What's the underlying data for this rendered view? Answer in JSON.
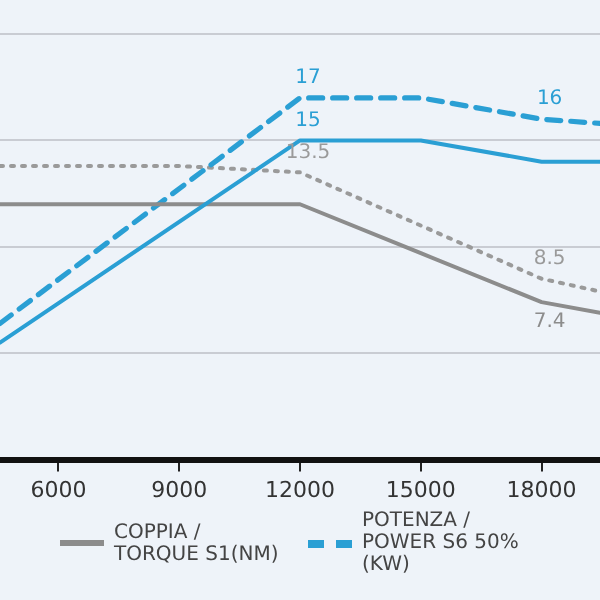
{
  "chart_data": {
    "type": "line",
    "xlim": [
      4550,
      19450
    ],
    "xticks": [
      6000,
      9000,
      12000,
      15000,
      18000
    ],
    "ylim": [
      0,
      21.6
    ],
    "yticks": [
      {
        "value": 5,
        "label": null
      },
      {
        "value": 10,
        "label": null
      },
      {
        "value": 15,
        "label": null
      },
      {
        "value": 20,
        "label": null
      }
    ],
    "tick_labels": "x",
    "grid": "y",
    "legend": "bottom",
    "marker": "none",
    "series": [
      {
        "color": "#2a9fd4",
        "line_style": "solid",
        "x": [
          4550,
          12000,
          15000,
          18000,
          19450
        ],
        "values": [
          5.5,
          15,
          15,
          14,
          14
        ],
        "value_labels": [
          null,
          "15",
          null,
          null,
          null
        ]
      },
      {
        "name": "COPPIA / TORQUE S1(NM)",
        "color": "#8c8c8c",
        "line_style": "solid",
        "x": [
          4550,
          12000,
          15000,
          18000,
          19450
        ],
        "values": [
          12,
          12,
          9.7,
          7.4,
          6.9
        ],
        "value_labels": [
          null,
          null,
          null,
          "7.4",
          null
        ]
      },
      {
        "name": "POTENZA / POWER S6 50% (KW)",
        "color": "#2a9fd4",
        "line_style": "dashed",
        "x": [
          4550,
          12000,
          15000,
          18000,
          19450
        ],
        "values": [
          6.4,
          17,
          17,
          16,
          15.8
        ],
        "value_labels": [
          null,
          "17",
          null,
          "16",
          null
        ]
      },
      {
        "color": "#9a9a9a",
        "line_style": "dotted",
        "x": [
          4550,
          9000,
          12000,
          18000,
          19450
        ],
        "values": [
          13.8,
          13.8,
          13.5,
          8.5,
          7.9
        ],
        "value_labels": [
          null,
          null,
          "13.5",
          "8.5",
          null
        ]
      }
    ]
  }
}
